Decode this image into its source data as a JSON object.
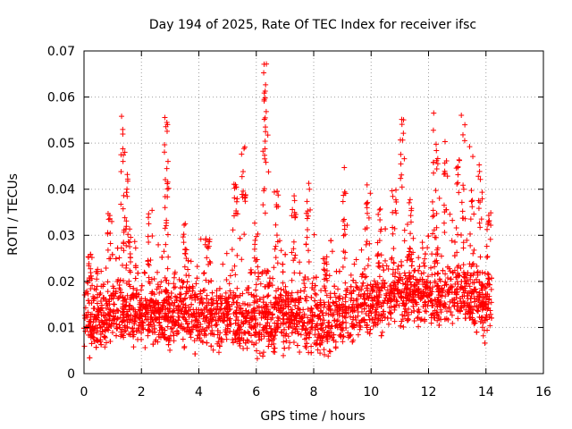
{
  "chart_data": {
    "type": "scatter",
    "title": "Day 194 of 2025, Rate Of TEC Index for receiver ifsc",
    "xlabel": "GPS time / hours",
    "ylabel": "ROTI / TECUs",
    "xlim": [
      0,
      16
    ],
    "ylim": [
      0,
      0.07
    ],
    "x_ticks": [
      "0",
      "2",
      "4",
      "6",
      "8",
      "10",
      "12",
      "14",
      "16"
    ],
    "y_ticks": [
      "0",
      "0.01",
      "0.02",
      "0.03",
      "0.04",
      "0.05",
      "0.06",
      "0.07"
    ],
    "grid": true,
    "marker": "plus",
    "marker_color": "#ff0000",
    "series": [
      {
        "name": "ROTI",
        "x_range": [
          0,
          14.2
        ],
        "baseline": [
          [
            0.0,
            0.012
          ],
          [
            0.5,
            0.011
          ],
          [
            1.0,
            0.013
          ],
          [
            1.5,
            0.013
          ],
          [
            2.0,
            0.012
          ],
          [
            2.5,
            0.013
          ],
          [
            3.0,
            0.012
          ],
          [
            3.5,
            0.013
          ],
          [
            4.0,
            0.012
          ],
          [
            4.5,
            0.012
          ],
          [
            5.0,
            0.013
          ],
          [
            5.5,
            0.012
          ],
          [
            6.0,
            0.011
          ],
          [
            6.5,
            0.012
          ],
          [
            7.0,
            0.012
          ],
          [
            7.5,
            0.012
          ],
          [
            8.0,
            0.011
          ],
          [
            8.5,
            0.011
          ],
          [
            9.0,
            0.012
          ],
          [
            9.5,
            0.013
          ],
          [
            10.0,
            0.015
          ],
          [
            10.5,
            0.016
          ],
          [
            11.0,
            0.017
          ],
          [
            11.5,
            0.017
          ],
          [
            12.0,
            0.017
          ],
          [
            12.5,
            0.017
          ],
          [
            13.0,
            0.017
          ],
          [
            13.5,
            0.016
          ],
          [
            14.0,
            0.015
          ],
          [
            14.2,
            0.015
          ]
        ],
        "peaks": [
          [
            0.2,
            0.026
          ],
          [
            0.9,
            0.034
          ],
          [
            1.35,
            0.056
          ],
          [
            1.45,
            0.043
          ],
          [
            1.55,
            0.033
          ],
          [
            2.3,
            0.035
          ],
          [
            2.85,
            0.055
          ],
          [
            2.9,
            0.045
          ],
          [
            3.5,
            0.033
          ],
          [
            4.3,
            0.029
          ],
          [
            5.3,
            0.041
          ],
          [
            5.55,
            0.049
          ],
          [
            6.0,
            0.032
          ],
          [
            6.3,
            0.067
          ],
          [
            6.35,
            0.062
          ],
          [
            6.7,
            0.04
          ],
          [
            7.3,
            0.038
          ],
          [
            7.8,
            0.042
          ],
          [
            8.4,
            0.025
          ],
          [
            9.1,
            0.045
          ],
          [
            9.9,
            0.041
          ],
          [
            10.3,
            0.036
          ],
          [
            10.8,
            0.04
          ],
          [
            11.1,
            0.055
          ],
          [
            11.4,
            0.038
          ],
          [
            12.2,
            0.057
          ],
          [
            12.3,
            0.049
          ],
          [
            12.6,
            0.05
          ],
          [
            13.0,
            0.047
          ],
          [
            13.2,
            0.056
          ],
          [
            13.5,
            0.049
          ],
          [
            13.8,
            0.045
          ],
          [
            14.1,
            0.035
          ]
        ]
      }
    ]
  }
}
